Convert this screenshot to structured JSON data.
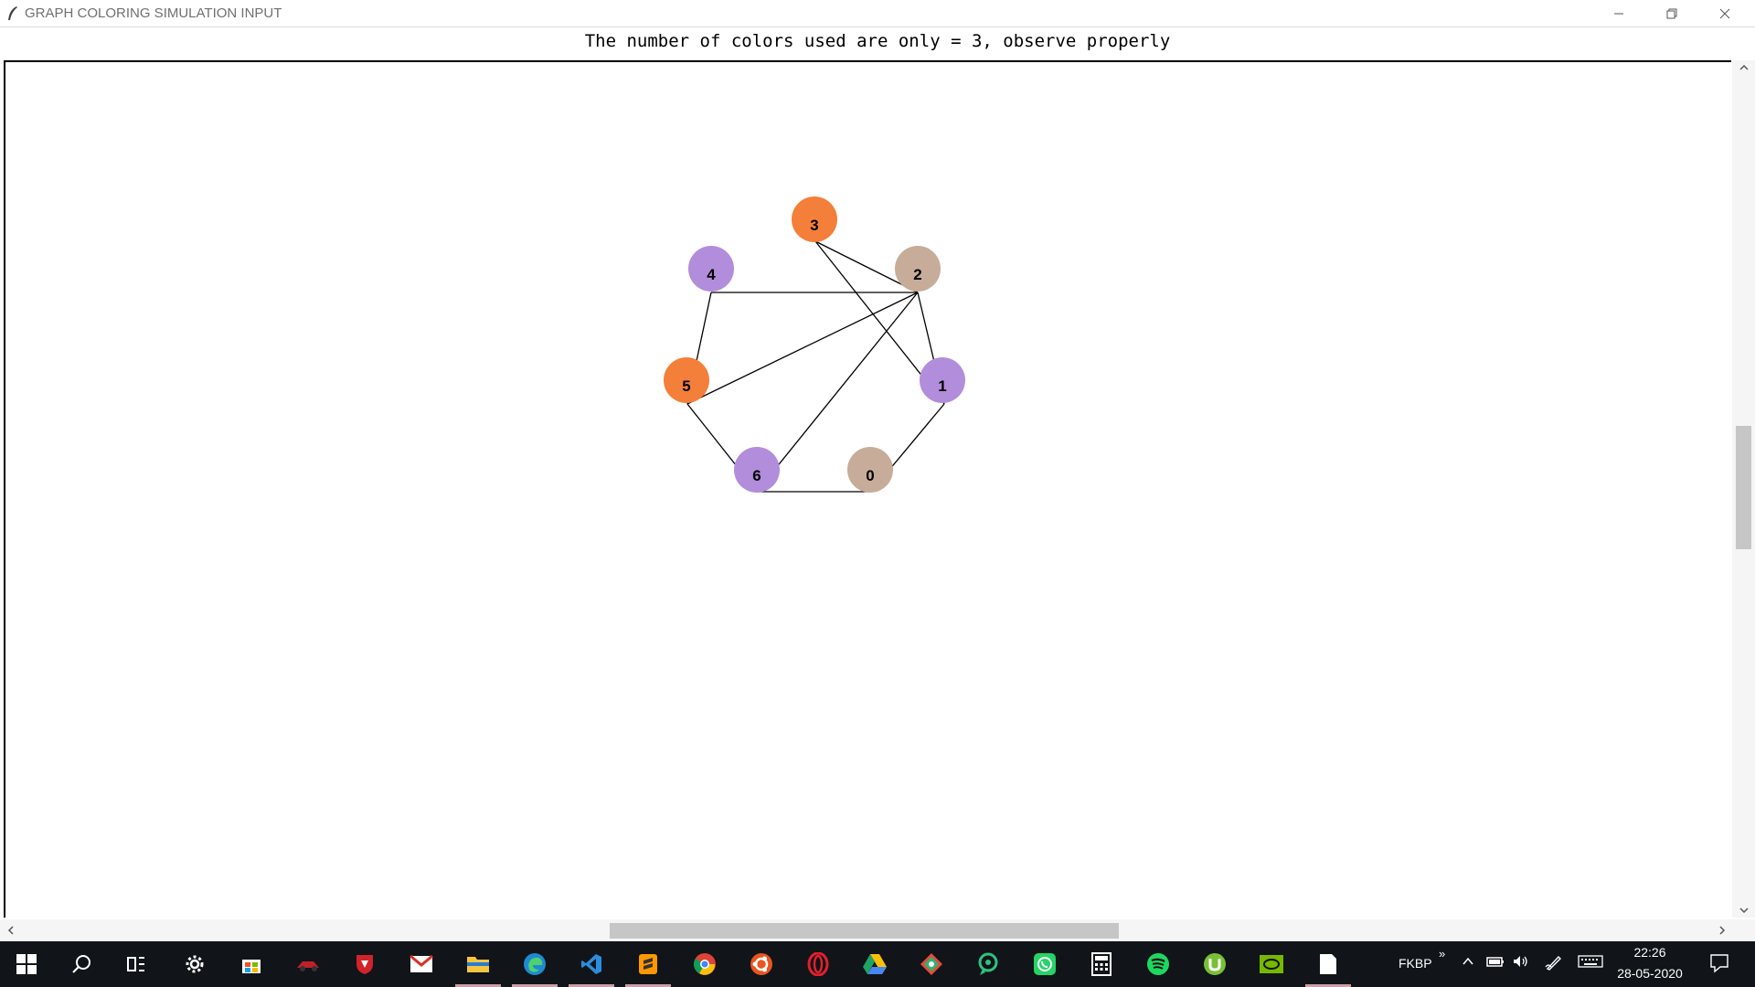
{
  "window": {
    "title": "GRAPH COLORING SIMULATION INPUT",
    "controls": [
      "minimize",
      "maximize",
      "close"
    ]
  },
  "message": "The number of colors used are only = 3, observe properly",
  "graph": {
    "colors": {
      "orange": "#f47f3a",
      "tan": "#c7ac99",
      "purple": "#b28ddb"
    },
    "nodes": [
      {
        "id": "0",
        "color": "#c7ac99"
      },
      {
        "id": "1",
        "color": "#b28ddb"
      },
      {
        "id": "2",
        "color": "#c7ac99"
      },
      {
        "id": "3",
        "color": "#f47f3a"
      },
      {
        "id": "4",
        "color": "#b28ddb"
      },
      {
        "id": "5",
        "color": "#f47f3a"
      },
      {
        "id": "6",
        "color": "#b28ddb"
      }
    ],
    "edges": [
      [
        "3",
        "2"
      ],
      [
        "3",
        "1"
      ],
      [
        "2",
        "4"
      ],
      [
        "2",
        "5"
      ],
      [
        "2",
        "6"
      ],
      [
        "2",
        "1"
      ],
      [
        "4",
        "5"
      ],
      [
        "5",
        "6"
      ],
      [
        "6",
        "0"
      ],
      [
        "0",
        "1"
      ]
    ]
  },
  "taskbar": {
    "icons": [
      "windows-start-icon",
      "search-icon",
      "task-view-icon",
      "settings-icon",
      "store-icon",
      "racing-car-icon",
      "msi-dragon-icon",
      "gmail-icon",
      "file-explorer-icon",
      "edge-icon",
      "vscode-icon",
      "sublime-text-icon",
      "chrome-icon",
      "ubuntu-icon",
      "opera-icon",
      "google-drive-icon",
      "git-kraken-icon",
      "screen-recorder-icon",
      "whatsapp-icon",
      "calculator-icon",
      "spotify-icon",
      "utorrent-icon",
      "nvidia-icon",
      "notepad-icon"
    ],
    "tray": {
      "language": "FKBP",
      "time": "22:26",
      "date": "28-05-2020",
      "icons": [
        "expand-chevron-icon",
        "show-hidden-icon",
        "battery-icon",
        "volume-icon",
        "pen-icon",
        "keyboard-icon",
        "notifications-icon"
      ]
    }
  }
}
